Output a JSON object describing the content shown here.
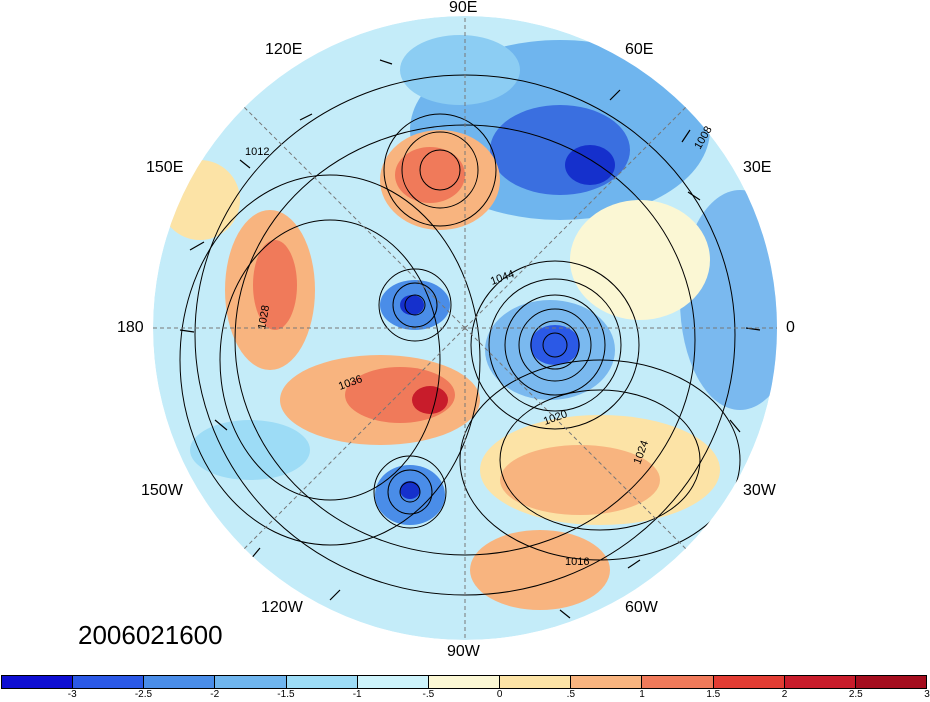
{
  "date_label": "2006021600",
  "longitude_labels": {
    "e90": "90E",
    "e60": "60E",
    "e30": "30E",
    "zero": "0",
    "w30": "30W",
    "w60": "60W",
    "w90": "90W",
    "w120": "120W",
    "w150": "150W",
    "d180": "180",
    "e150": "150E",
    "e120": "120E"
  },
  "isobar_labels": [
    "1008",
    "1012",
    "1016",
    "1020",
    "1024",
    "1028",
    "1036",
    "1044"
  ],
  "colorbar": {
    "colors": [
      "#0e0ed2",
      "#2b59e6",
      "#4a8de8",
      "#6fb5ee",
      "#9ddcf6",
      "#cdf3fb",
      "#fbf7d4",
      "#fce3a6",
      "#f8b47f",
      "#f07a5a",
      "#e23c33",
      "#c81c2b",
      "#a40d1e"
    ],
    "ticks": [
      "-3",
      "-2.5",
      "-2",
      "-1.5",
      "-1",
      "-.5",
      "0",
      ".5",
      "1",
      "1.5",
      "2",
      "2.5",
      "3"
    ]
  }
}
